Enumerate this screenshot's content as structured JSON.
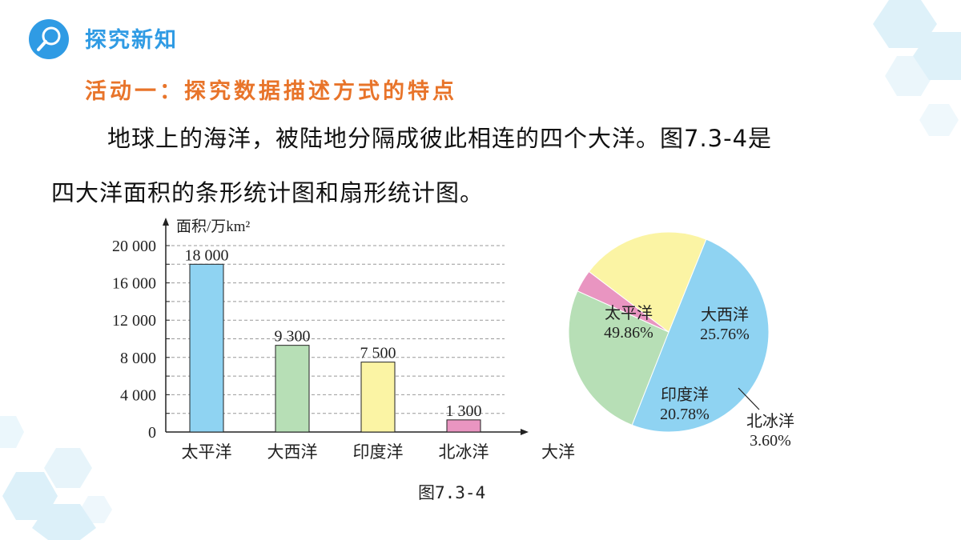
{
  "header": {
    "title": "探究新知",
    "icon": "magnifier-icon"
  },
  "activity": {
    "title": "活动一：探究数据描述方式的特点"
  },
  "paragraph": {
    "line1": "地球上的海洋，被陆地分隔成彼此相连的四个大洋。图7.3-4是",
    "line2": "四大洋面积的条形统计图和扇形统计图。"
  },
  "figure_caption": "图7.3-4",
  "colors": {
    "accent": "#2f9be4",
    "activity": "#e8742a"
  },
  "chart_data": [
    {
      "type": "bar",
      "ylabel": "面积/万km²",
      "xlabel": "大洋",
      "categories": [
        "太平洋",
        "大西洋",
        "印度洋",
        "北冰洋"
      ],
      "values": [
        18000,
        9300,
        7500,
        1300
      ],
      "value_labels": [
        "18 000",
        "9 300",
        "7 500",
        "1 300"
      ],
      "yticks": [
        0,
        4000,
        8000,
        12000,
        16000,
        20000
      ],
      "ytick_labels": [
        "0",
        "4 000",
        "8 000",
        "12 000",
        "16 000",
        "20 000"
      ],
      "ylim": [
        0,
        20000
      ],
      "grid": true,
      "bar_colors": [
        "#8fd3f2",
        "#b7dfb6",
        "#fbf4a4",
        "#e995c1"
      ]
    },
    {
      "type": "pie",
      "labels": [
        "太平洋",
        "大西洋",
        "北冰洋",
        "印度洋"
      ],
      "values": [
        49.86,
        25.76,
        3.6,
        20.78
      ],
      "value_labels": [
        "49.86%",
        "25.76%",
        "3.60%",
        "20.78%"
      ],
      "colors": [
        "#8fd3f2",
        "#b7dfb6",
        "#e995c1",
        "#fbf4a4"
      ]
    }
  ]
}
